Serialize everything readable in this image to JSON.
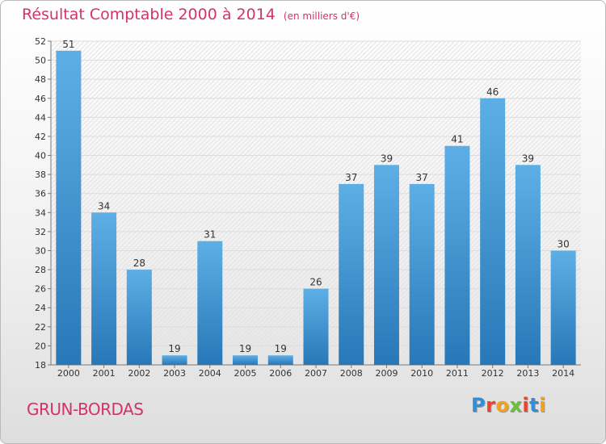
{
  "header": {
    "title": "Résultat Comptable 2000 à 2014",
    "unit": "(en milliers d'€)"
  },
  "footer": {
    "commune": "GRUN-BORDAS",
    "brand": "Proxiti"
  },
  "colors": {
    "title": "#d2336a",
    "bar_top": "#5eaee6",
    "bar_bottom": "#2878b8",
    "brand_letters": [
      "#2f8fd8",
      "#e8462e",
      "#f2a21b",
      "#6cbf3a",
      "#e8462e",
      "#2f8fd8",
      "#f2a21b"
    ]
  },
  "chart_data": {
    "type": "bar",
    "title": "Résultat Comptable 2000 à 2014",
    "subtitle": "(en milliers d'€)",
    "xlabel": "",
    "ylabel": "",
    "categories": [
      "2000",
      "2001",
      "2002",
      "2003",
      "2004",
      "2005",
      "2006",
      "2007",
      "2008",
      "2009",
      "2010",
      "2011",
      "2012",
      "2013",
      "2014"
    ],
    "values": [
      51,
      34,
      28,
      19,
      31,
      19,
      19,
      26,
      37,
      39,
      37,
      41,
      46,
      39,
      30
    ],
    "ylim": [
      18,
      52
    ],
    "yticks": [
      18,
      20,
      22,
      24,
      26,
      28,
      30,
      32,
      34,
      36,
      38,
      40,
      42,
      44,
      46,
      48,
      50,
      52
    ],
    "grid": true,
    "legend": "none"
  }
}
